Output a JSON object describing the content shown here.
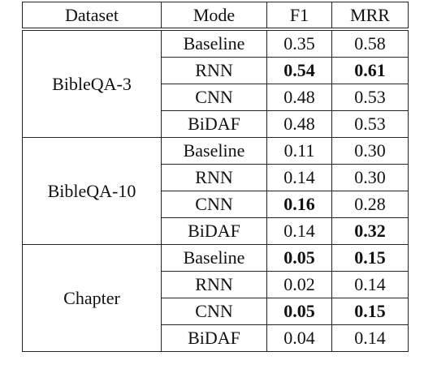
{
  "table": {
    "header": [
      "Dataset",
      "Mode",
      "F1",
      "MRR"
    ],
    "groups": [
      {
        "dataset": "BibleQA-3",
        "rows": [
          {
            "mode": "Baseline",
            "f1": "0.35",
            "mrr": "0.58",
            "bold": []
          },
          {
            "mode": "RNN",
            "f1": "0.54",
            "mrr": "0.61",
            "bold": [
              "f1",
              "mrr"
            ]
          },
          {
            "mode": "CNN",
            "f1": "0.48",
            "mrr": "0.53",
            "bold": []
          },
          {
            "mode": "BiDAF",
            "f1": "0.48",
            "mrr": "0.53",
            "bold": []
          }
        ]
      },
      {
        "dataset": "BibleQA-10",
        "rows": [
          {
            "mode": "Baseline",
            "f1": "0.11",
            "mrr": "0.30",
            "bold": []
          },
          {
            "mode": "RNN",
            "f1": "0.14",
            "mrr": "0.30",
            "bold": []
          },
          {
            "mode": "CNN",
            "f1": "0.16",
            "mrr": "0.28",
            "bold": [
              "f1"
            ]
          },
          {
            "mode": "BiDAF",
            "f1": "0.14",
            "mrr": "0.32",
            "bold": [
              "mrr"
            ]
          }
        ]
      },
      {
        "dataset": "Chapter",
        "rows": [
          {
            "mode": "Baseline",
            "f1": "0.05",
            "mrr": "0.15",
            "bold": [
              "f1",
              "mrr"
            ]
          },
          {
            "mode": "RNN",
            "f1": "0.02",
            "mrr": "0.14",
            "bold": []
          },
          {
            "mode": "CNN",
            "f1": "0.05",
            "mrr": "0.15",
            "bold": [
              "f1",
              "mrr"
            ]
          },
          {
            "mode": "BiDAF",
            "f1": "0.04",
            "mrr": "0.14",
            "bold": []
          }
        ]
      }
    ]
  }
}
